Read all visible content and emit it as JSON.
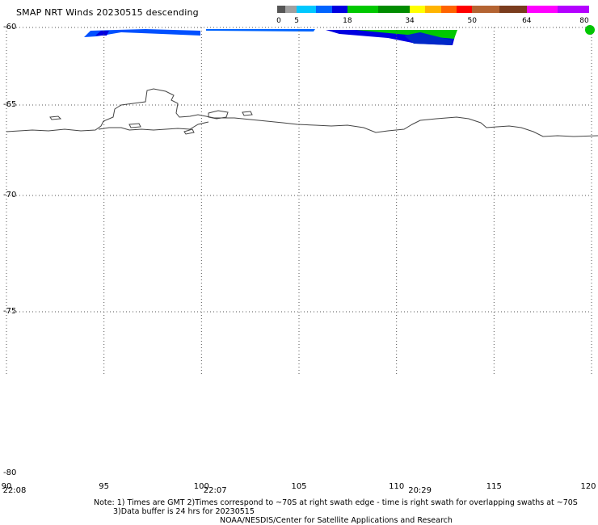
{
  "title": "SMAP NRT Winds  20230515 descending",
  "colorbar": {
    "segments": [
      {
        "color": "#555555",
        "from": 0,
        "to": 2
      },
      {
        "color": "#a0a0a0",
        "from": 2,
        "to": 5
      },
      {
        "color": "#00c8ff",
        "from": 5,
        "to": 10
      },
      {
        "color": "#0064ff",
        "from": 10,
        "to": 14
      },
      {
        "color": "#0000e0",
        "from": 14,
        "to": 18
      },
      {
        "color": "#00c800",
        "from": 18,
        "to": 26
      },
      {
        "color": "#008c00",
        "from": 26,
        "to": 34
      },
      {
        "color": "#ffff00",
        "from": 34,
        "to": 38
      },
      {
        "color": "#ffb400",
        "from": 38,
        "to": 42
      },
      {
        "color": "#ff6400",
        "from": 42,
        "to": 46
      },
      {
        "color": "#ff0000",
        "from": 46,
        "to": 50
      },
      {
        "color": "#b46432",
        "from": 50,
        "to": 57
      },
      {
        "color": "#7a3c1e",
        "from": 57,
        "to": 64
      },
      {
        "color": "#ff00ff",
        "from": 64,
        "to": 72
      },
      {
        "color": "#b400ff",
        "from": 72,
        "to": 80
      }
    ],
    "labels": [
      "0",
      "5",
      "18",
      "34",
      "50",
      "64",
      "80"
    ],
    "label_values": [
      0,
      5,
      18,
      34,
      50,
      64,
      80
    ],
    "min": 0,
    "max": 80
  },
  "map": {
    "lat_labels": [
      "-60",
      "-65",
      "-70",
      "-75",
      "-80"
    ],
    "lat_values": [
      -60,
      -65,
      -70,
      -75,
      -80
    ],
    "lon_labels": [
      "90",
      "95",
      "100",
      "105",
      "110",
      "115",
      "120"
    ],
    "lon_values": [
      90,
      95,
      100,
      105,
      110,
      115,
      120
    ],
    "swath_times": [
      "22:08",
      "22:07",
      "20:29"
    ],
    "swath_time_lons": [
      90.2,
      100.7,
      111.2
    ]
  },
  "notes": {
    "line1": "Note: 1) Times are GMT 2)Times correspond to ~70S at right swath edge - time is right swath for overlapping swaths at ~70S",
    "line2": "3)Data buffer is 24 hrs for 20230515",
    "line3": "NOAA/NESDIS/Center for Satellite Applications and Research"
  }
}
